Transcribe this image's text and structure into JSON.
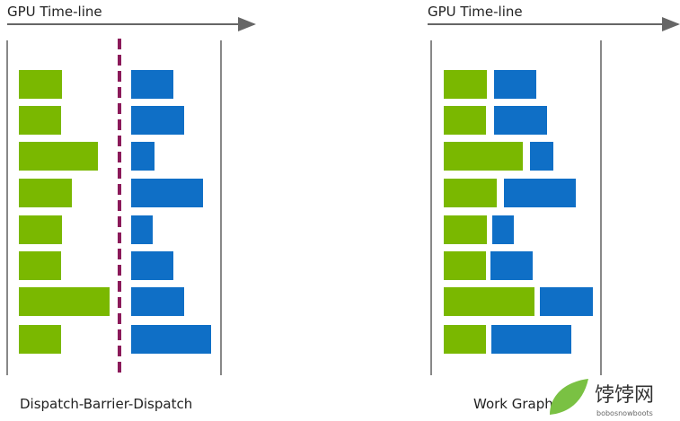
{
  "left": {
    "timeline_label": "GPU Time-line",
    "caption": "Dispatch-Barrier-Dispatch"
  },
  "right": {
    "timeline_label": "GPU Time-line",
    "caption": "Work Graph"
  },
  "watermark": {
    "name": "饽饽网",
    "url": "bobosnowboots"
  }
}
